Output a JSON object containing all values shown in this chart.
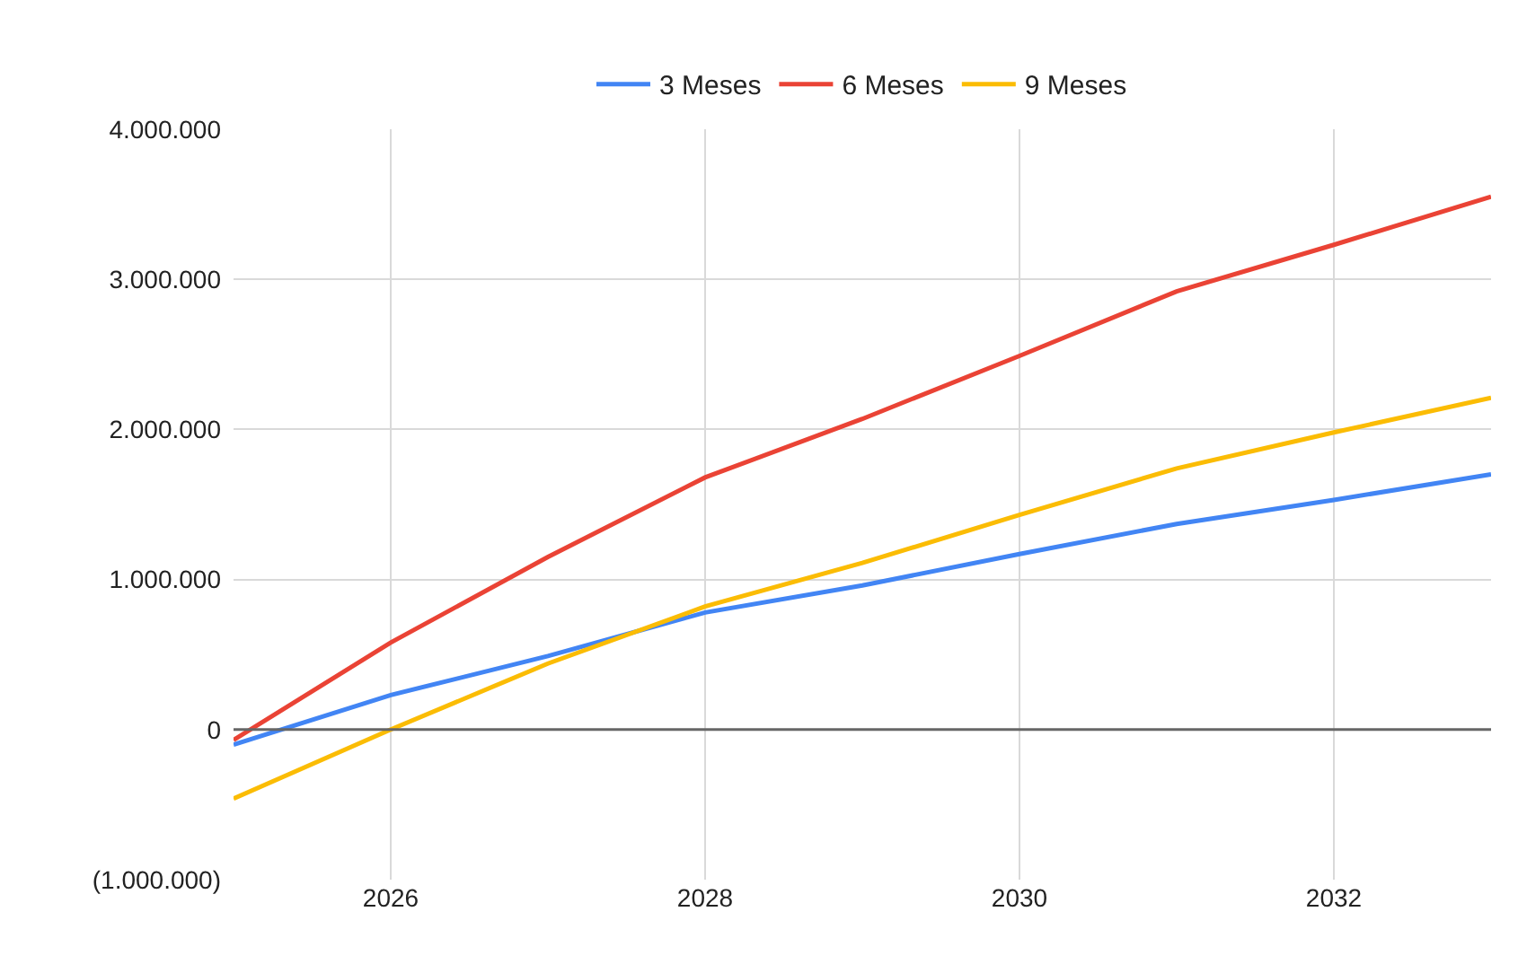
{
  "chart_data": {
    "type": "line",
    "x": [
      2025,
      2026,
      2027,
      2028,
      2029,
      2030,
      2031,
      2032,
      2033
    ],
    "series": [
      {
        "name": "3 Meses",
        "color": "#4285f4",
        "values": [
          -100000,
          230000,
          490000,
          780000,
          960000,
          1170000,
          1370000,
          1530000,
          1700000
        ]
      },
      {
        "name": "6 Meses",
        "color": "#ea4335",
        "values": [
          -70000,
          580000,
          1150000,
          1680000,
          2070000,
          2490000,
          2920000,
          3230000,
          3550000
        ]
      },
      {
        "name": "9 Meses",
        "color": "#fbbc04",
        "values": [
          -460000,
          0,
          440000,
          820000,
          1110000,
          1430000,
          1740000,
          1980000,
          2210000
        ]
      }
    ],
    "xlim": [
      2025,
      2033
    ],
    "xticks": [
      2026,
      2028,
      2030,
      2032
    ],
    "ylim": [
      -1000000,
      4000000
    ],
    "yticks": [
      {
        "value": -1000000,
        "label": "(1.000.000)"
      },
      {
        "value": 0,
        "label": "0"
      },
      {
        "value": 1000000,
        "label": "1.000.000"
      },
      {
        "value": 2000000,
        "label": "2.000.000"
      },
      {
        "value": 3000000,
        "label": "3.000.000"
      },
      {
        "value": 4000000,
        "label": "4.000.000"
      }
    ],
    "ref_lines": [
      {
        "axis": "y",
        "value": 0,
        "color": "#666666"
      }
    ],
    "grid": true,
    "legend": "top",
    "marker": "none",
    "line_style": "solid"
  }
}
